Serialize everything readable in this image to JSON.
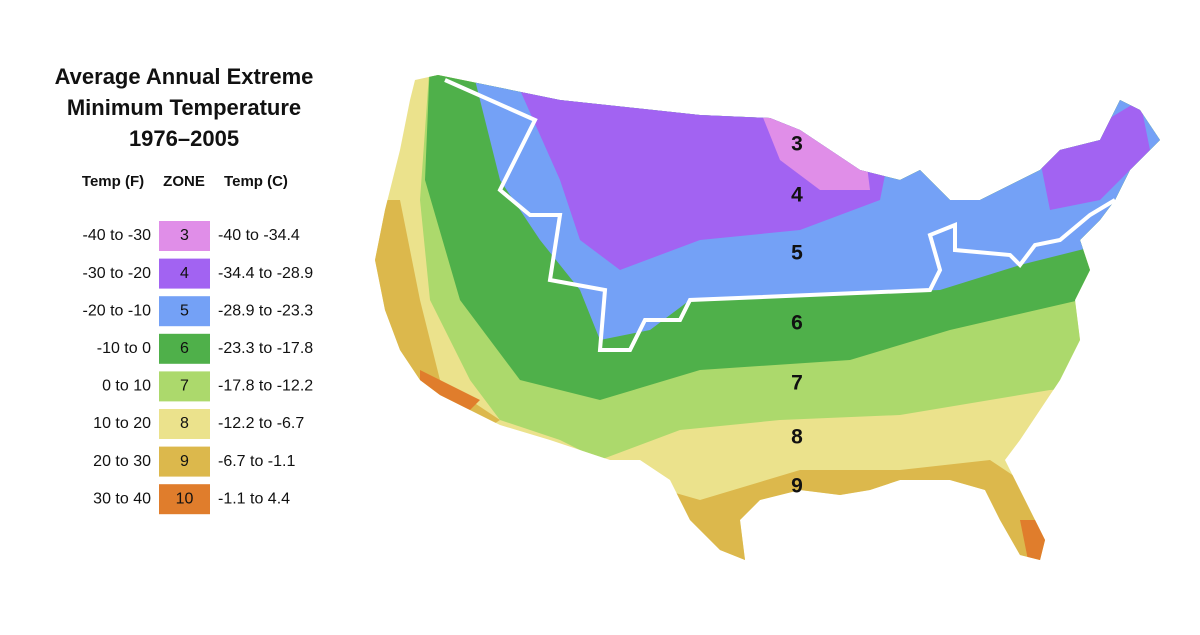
{
  "title": [
    "Average Annual Extreme",
    "Minimum Temperature",
    "1976–2005"
  ],
  "legend": {
    "headers": [
      "Temp (F)",
      "ZONE",
      "Temp (C)"
    ],
    "rows": [
      {
        "f": "-40 to -30",
        "zone": "3",
        "c": "-40 to -34.4",
        "color": "#e08ee8"
      },
      {
        "f": "-30 to -20",
        "zone": "4",
        "c": "-34.4 to -28.9",
        "color": "#a263f2"
      },
      {
        "f": "-20 to -10",
        "zone": "5",
        "c": "-28.9 to -23.3",
        "color": "#74a1f6"
      },
      {
        "f": "-10 to 0",
        "zone": "6",
        "c": "-23.3 to -17.8",
        "color": "#4fb04a"
      },
      {
        "f": "0 to 10",
        "zone": "7",
        "c": "-17.8 to -12.2",
        "color": "#acd96c"
      },
      {
        "f": "10 to 20",
        "zone": "8",
        "c": "-12.2 to -6.7",
        "color": "#ebe28c"
      },
      {
        "f": "20 to 30",
        "zone": "9",
        "c": "-6.7 to -1.1",
        "color": "#dcb84c"
      },
      {
        "f": "30 to 40",
        "zone": "10",
        "c": "-1.1 to 4.4",
        "color": "#e07d2c"
      }
    ]
  },
  "map_labels": [
    "3",
    "4",
    "5",
    "6",
    "7",
    "8",
    "9"
  ]
}
